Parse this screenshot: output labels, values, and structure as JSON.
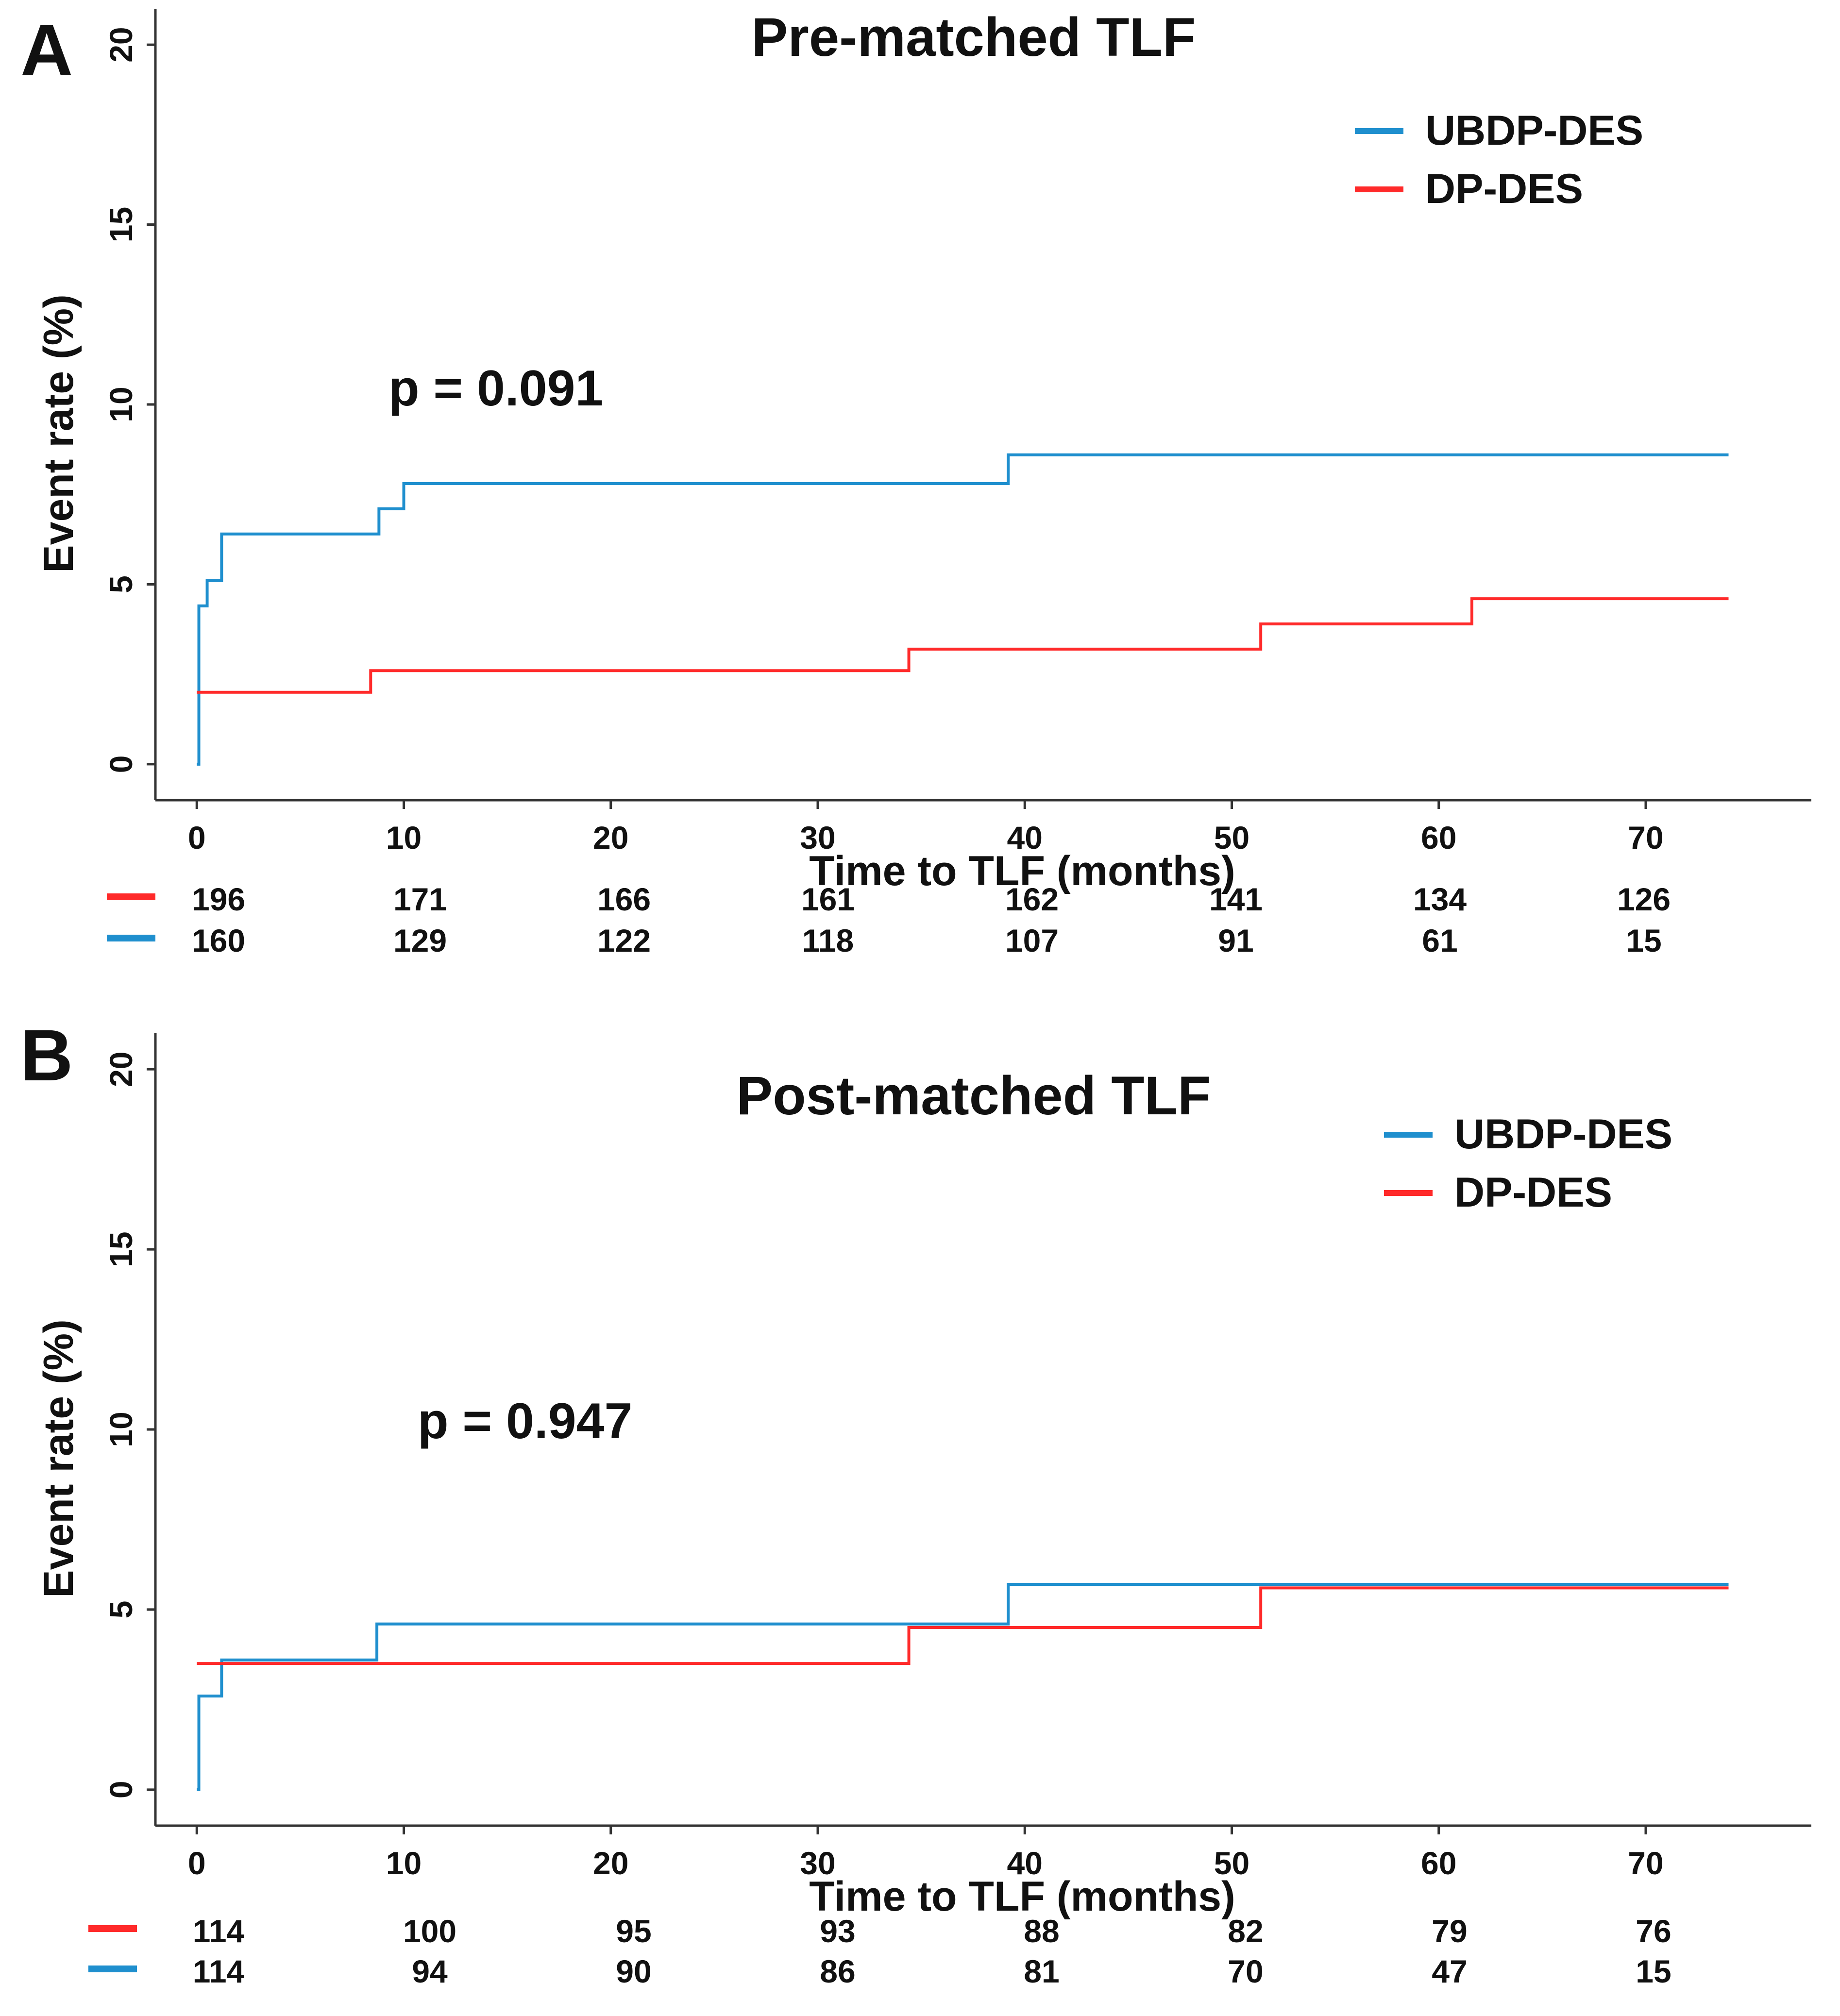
{
  "colors": {
    "UBDP-DES": "#1f8fce",
    "DP-DES": "#ff2a2a",
    "axis": "#333333"
  },
  "chart_data": [
    {
      "panel": "A",
      "type": "line",
      "step": true,
      "title": "Pre-matched TLF",
      "xlabel": "Time to TLF (months)",
      "ylabel": "Event rate (%)",
      "xlim": [
        -2,
        78
      ],
      "ylim": [
        -1,
        21
      ],
      "x_ticks": [
        0,
        10,
        20,
        30,
        40,
        50,
        60,
        70
      ],
      "y_ticks": [
        0,
        5,
        10,
        15,
        20
      ],
      "legend_position": "top-right",
      "annotation": "p = 0.091",
      "series": [
        {
          "name": "UBDP-DES",
          "color": "#1f8fce",
          "x": [
            0,
            0.1,
            0.5,
            1.2,
            8.8,
            10,
            39.2,
            74
          ],
          "y": [
            0,
            4.4,
            5.1,
            6.4,
            7.1,
            7.8,
            8.6,
            8.6
          ]
        },
        {
          "name": "DP-DES",
          "color": "#ff2a2a",
          "x": [
            0,
            8.4,
            34.4,
            51.4,
            61.6,
            74
          ],
          "y": [
            2.0,
            2.6,
            3.2,
            3.9,
            4.6,
            4.6
          ]
        }
      ],
      "risk_table": [
        {
          "series": "DP-DES",
          "color": "#ff2a2a",
          "values": [
            "196",
            "171",
            "166",
            "161",
            "162",
            "141",
            "134",
            "126"
          ]
        },
        {
          "series": "UBDP-DES",
          "color": "#1f8fce",
          "values": [
            "160",
            "129",
            "122",
            "118",
            "107",
            "91",
            "61",
            "15"
          ]
        }
      ]
    },
    {
      "panel": "B",
      "type": "line",
      "step": true,
      "title": "Post-matched TLF",
      "xlabel": "Time to TLF (months)",
      "ylabel": "Event rate (%)",
      "xlim": [
        -2,
        78
      ],
      "ylim": [
        -1,
        21
      ],
      "x_ticks": [
        0,
        10,
        20,
        30,
        40,
        50,
        60,
        70
      ],
      "y_ticks": [
        0,
        5,
        10,
        15,
        20
      ],
      "legend_position": "top-right",
      "annotation": "p = 0.947",
      "series": [
        {
          "name": "UBDP-DES",
          "color": "#1f8fce",
          "x": [
            0,
            0.1,
            1.2,
            8.7,
            39.2,
            74
          ],
          "y": [
            0,
            2.6,
            3.6,
            4.6,
            5.7,
            5.7
          ]
        },
        {
          "name": "DP-DES",
          "color": "#ff2a2a",
          "x": [
            0,
            34.4,
            51.4,
            74
          ],
          "y": [
            3.5,
            4.5,
            5.6,
            5.6
          ]
        }
      ],
      "risk_table": [
        {
          "series": "DP-DES",
          "color": "#ff2a2a",
          "values": [
            "114",
            "100",
            "95",
            "93",
            "88",
            "82",
            "79",
            "76"
          ]
        },
        {
          "series": "UBDP-DES",
          "color": "#1f8fce",
          "values": [
            "114",
            "94",
            "90",
            "86",
            "81",
            "70",
            "47",
            "15"
          ]
        }
      ]
    }
  ]
}
